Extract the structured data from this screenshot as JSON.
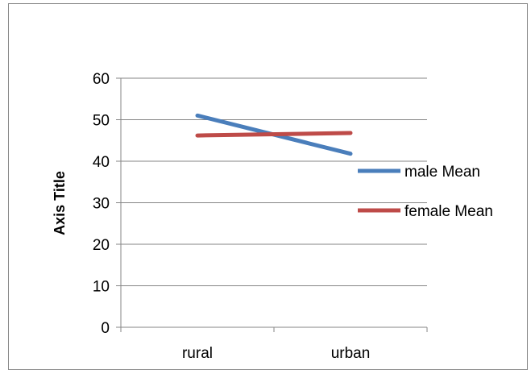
{
  "chart_data": {
    "type": "line",
    "title": "",
    "xlabel": "",
    "ylabel": "Axis Title",
    "categories": [
      "rural",
      "urban"
    ],
    "ylim": [
      0,
      60
    ],
    "yticks": [
      0,
      10,
      20,
      30,
      40,
      50,
      60
    ],
    "grid": true,
    "legend_position": "right",
    "series": [
      {
        "name": "male Mean",
        "color": "#4a7ebb",
        "values": [
          51,
          41.8
        ]
      },
      {
        "name": "female Mean",
        "color": "#be4b48",
        "values": [
          46.2,
          46.8
        ]
      }
    ]
  }
}
